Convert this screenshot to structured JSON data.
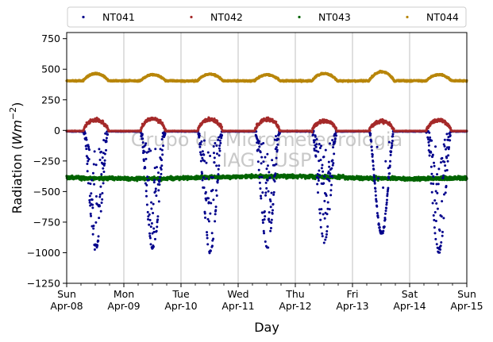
{
  "chart_data": {
    "type": "scatter",
    "xlabel": "Day",
    "ylabel_prefix": "Radiation (",
    "ylabel_unit_base": "Wm",
    "ylabel_unit_exp": "−2",
    "ylabel_suffix": ")",
    "watermark": [
      "Grupo de Micrometeorologia",
      "IAG - USP"
    ],
    "x_range": [
      "2018-04-08",
      "2018-04-15"
    ],
    "ylim": [
      -1250,
      800
    ],
    "yticks": [
      -1250,
      -1000,
      -750,
      -500,
      -250,
      0,
      250,
      500,
      750
    ],
    "xticks": [
      {
        "day": "Sun",
        "date": "Apr-08"
      },
      {
        "day": "Mon",
        "date": "Apr-09"
      },
      {
        "day": "Tue",
        "date": "Apr-10"
      },
      {
        "day": "Wed",
        "date": "Apr-11"
      },
      {
        "day": "Thu",
        "date": "Apr-12"
      },
      {
        "day": "Fri",
        "date": "Apr-13"
      },
      {
        "day": "Sat",
        "date": "Apr-14"
      },
      {
        "day": "Sun",
        "date": "Apr-15"
      }
    ],
    "grid": "vertical at day ticks",
    "legend_position": "top, above plot, 4 columns",
    "series": [
      {
        "name": "NT041",
        "color": "#00008b",
        "pattern": "night ~0; daytime strongly negative",
        "daily_min": [
          -960,
          -960,
          -990,
          -950,
          -900,
          -840,
          -990
        ]
      },
      {
        "name": "NT042",
        "color": "#a52a2a",
        "pattern": "night ~-5; daytime peak",
        "daily_max": [
          95,
          105,
          100,
          100,
          90,
          85,
          95
        ]
      },
      {
        "name": "NT043",
        "color": "#006400",
        "pattern": "around -380 to -410 all week",
        "baseline": -385
      },
      {
        "name": "NT044",
        "color": "#b8860b",
        "pattern": "around 400 with daily bumps",
        "daily_max": [
          465,
          455,
          460,
          455,
          465,
          480,
          455
        ]
      }
    ]
  }
}
